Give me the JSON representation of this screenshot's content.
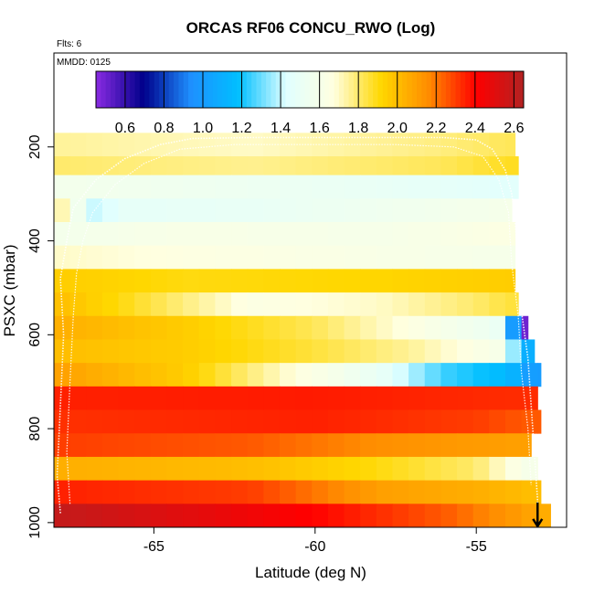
{
  "chart_data": {
    "type": "heatmap",
    "title": "ORCAS RF06 CONCU_RWO (Log)",
    "flights_label": "Flts: 6",
    "date_label": "MMDD: 0125",
    "xlabel": "Latitude (deg N)",
    "ylabel": "PSXC (mbar)",
    "xlim": [
      -68.1,
      -52.2
    ],
    "ylim": [
      1010,
      0
    ],
    "x_ticks": [
      -65,
      -60,
      -55
    ],
    "x_tick_labels": [
      "-65",
      "-60",
      "-55"
    ],
    "y_ticks": [
      200,
      400,
      600,
      800,
      1000
    ],
    "y_tick_labels": [
      "200",
      "400",
      "600",
      "800",
      "1000"
    ],
    "colorbar": {
      "min": 0.45,
      "max": 2.65,
      "ticks": [
        0.6,
        0.8,
        1.0,
        1.2,
        1.4,
        1.6,
        1.8,
        2.0,
        2.2,
        2.4,
        2.6
      ],
      "tick_labels": [
        "0.6",
        "0.8",
        "1.0",
        "1.2",
        "1.4",
        "1.6",
        "1.8",
        "2.0",
        "2.2",
        "2.4",
        "2.6"
      ],
      "colors": [
        "#8a2be2",
        "#00008b",
        "#1e90ff",
        "#00bfff",
        "#e0ffff",
        "#ffffe0",
        "#ffd700",
        "#ff8c00",
        "#ff0000",
        "#b22222"
      ]
    },
    "pressure_bands": [
      {
        "p_top": 170,
        "p_bot": 220,
        "lat_max": -53.8,
        "profile": [
          [
            -68.1,
            1.75
          ],
          [
            -62,
            1.7
          ],
          [
            -56,
            1.78
          ],
          [
            -54,
            1.82
          ]
        ]
      },
      {
        "p_top": 220,
        "p_bot": 260,
        "lat_max": -53.7,
        "profile": [
          [
            -68.1,
            1.8
          ],
          [
            -62,
            1.76
          ],
          [
            -56,
            1.82
          ],
          [
            -54,
            1.88
          ]
        ]
      },
      {
        "p_top": 260,
        "p_bot": 310,
        "lat_max": -53.7,
        "profile": [
          [
            -68.1,
            1.58
          ],
          [
            -64,
            1.55
          ],
          [
            -58,
            1.5
          ],
          [
            -54,
            1.45
          ]
        ]
      },
      {
        "p_top": 310,
        "p_bot": 360,
        "lat_max": -53.9,
        "profile": [
          [
            -68.1,
            1.8
          ],
          [
            -67,
            1.45
          ],
          [
            -66.5,
            1.3
          ],
          [
            -66.3,
            1.48
          ],
          [
            -62,
            1.5
          ],
          [
            -58,
            1.55
          ],
          [
            -54,
            1.6
          ]
        ]
      },
      {
        "p_top": 360,
        "p_bot": 410,
        "lat_max": -53.8,
        "profile": [
          [
            -68.1,
            1.58
          ],
          [
            -64,
            1.62
          ],
          [
            -58,
            1.6
          ],
          [
            -54,
            1.65
          ]
        ]
      },
      {
        "p_top": 410,
        "p_bot": 460,
        "lat_max": -53.8,
        "profile": [
          [
            -68.1,
            1.7
          ],
          [
            -64,
            1.66
          ],
          [
            -58,
            1.62
          ],
          [
            -54,
            1.6
          ]
        ]
      },
      {
        "p_top": 460,
        "p_bot": 510,
        "lat_max": -53.8,
        "profile": [
          [
            -68.1,
            1.95
          ],
          [
            -64,
            1.9
          ],
          [
            -58,
            1.92
          ],
          [
            -54,
            1.95
          ]
        ]
      },
      {
        "p_top": 510,
        "p_bot": 560,
        "lat_max": -53.7,
        "profile": [
          [
            -68.1,
            2.0
          ],
          [
            -66,
            1.9
          ],
          [
            -62,
            1.65
          ],
          [
            -58,
            1.7
          ],
          [
            -55,
            1.8
          ],
          [
            -54,
            1.85
          ]
        ]
      },
      {
        "p_top": 560,
        "p_bot": 610,
        "lat_max": -53.4,
        "profile": [
          [
            -68.1,
            2.05
          ],
          [
            -64,
            1.95
          ],
          [
            -60,
            1.82
          ],
          [
            -56,
            1.6
          ],
          [
            -54,
            1.5
          ],
          [
            -53.7,
            0.5
          ]
        ]
      },
      {
        "p_top": 610,
        "p_bot": 660,
        "lat_max": -53.2,
        "profile": [
          [
            -68.1,
            2.0
          ],
          [
            -64,
            1.95
          ],
          [
            -60,
            1.85
          ],
          [
            -57,
            1.75
          ],
          [
            -54.2,
            1.6
          ],
          [
            -53.5,
            1.1
          ]
        ]
      },
      {
        "p_top": 660,
        "p_bot": 710,
        "lat_max": -53.0,
        "profile": [
          [
            -68.1,
            2.1
          ],
          [
            -64,
            1.95
          ],
          [
            -61,
            1.7
          ],
          [
            -58,
            1.5
          ],
          [
            -56,
            1.25
          ],
          [
            -54,
            1.15
          ],
          [
            -53.3,
            1.0
          ]
        ]
      },
      {
        "p_top": 710,
        "p_bot": 760,
        "lat_max": -53.1,
        "profile": [
          [
            -68.1,
            2.35
          ],
          [
            -60,
            2.36
          ],
          [
            -54,
            2.33
          ]
        ]
      },
      {
        "p_top": 760,
        "p_bot": 810,
        "lat_max": -53.0,
        "profile": [
          [
            -68.1,
            2.32
          ],
          [
            -60,
            2.35
          ],
          [
            -55,
            2.3
          ],
          [
            -53.5,
            2.25
          ]
        ]
      },
      {
        "p_top": 810,
        "p_bot": 860,
        "lat_max": -53.3,
        "profile": [
          [
            -68.1,
            2.3
          ],
          [
            -62,
            2.25
          ],
          [
            -58,
            2.15
          ],
          [
            -54,
            2.1
          ]
        ]
      },
      {
        "p_top": 860,
        "p_bot": 910,
        "lat_max": -53.1,
        "profile": [
          [
            -68.1,
            2.05
          ],
          [
            -62,
            2.0
          ],
          [
            -58,
            1.9
          ],
          [
            -55,
            1.8
          ],
          [
            -53.5,
            1.6
          ]
        ]
      },
      {
        "p_top": 910,
        "p_bot": 960,
        "lat_max": -53.0,
        "profile": [
          [
            -68.1,
            2.35
          ],
          [
            -62,
            2.3
          ],
          [
            -58,
            2.1
          ],
          [
            -55,
            2.05
          ],
          [
            -53.3,
            2.0
          ]
        ]
      },
      {
        "p_top": 960,
        "p_bot": 1010,
        "lat_max": -52.7,
        "profile": [
          [
            -68.1,
            2.6
          ],
          [
            -64,
            2.5
          ],
          [
            -60,
            2.4
          ],
          [
            -56,
            2.25
          ],
          [
            -53.5,
            2.1
          ],
          [
            -52.8,
            2.05
          ]
        ]
      }
    ],
    "flight_track": [
      [
        -67.9,
        980
      ],
      [
        -68.0,
        900
      ],
      [
        -67.9,
        750
      ],
      [
        -67.8,
        600
      ],
      [
        -67.9,
        480
      ],
      [
        -67.7,
        400
      ],
      [
        -67.5,
        330
      ],
      [
        -66.8,
        270
      ],
      [
        -65.9,
        225
      ],
      [
        -64.8,
        195
      ],
      [
        -63.8,
        182
      ],
      [
        -62,
        180
      ],
      [
        -60,
        180
      ],
      [
        -58,
        180
      ],
      [
        -56,
        180
      ],
      [
        -55.0,
        185
      ],
      [
        -54.5,
        205
      ],
      [
        -54.1,
        250
      ],
      [
        -53.9,
        300
      ],
      [
        -53.8,
        350
      ],
      [
        -53.7,
        450
      ],
      [
        -53.6,
        550
      ],
      [
        -53.4,
        650
      ],
      [
        -53.3,
        750
      ],
      [
        -53.2,
        850
      ],
      [
        -53.1,
        950
      ],
      [
        -53.1,
        1000
      ]
    ],
    "flight_track_2": [
      [
        -67.6,
        960
      ],
      [
        -67.7,
        850
      ],
      [
        -67.6,
        700
      ],
      [
        -67.5,
        560
      ],
      [
        -67.4,
        470
      ],
      [
        -67.2,
        400
      ],
      [
        -66.9,
        340
      ],
      [
        -66.2,
        280
      ],
      [
        -65.3,
        235
      ],
      [
        -64.2,
        205
      ],
      [
        -62.5,
        195
      ],
      [
        -60,
        195
      ],
      [
        -57.5,
        195
      ],
      [
        -55.7,
        200
      ],
      [
        -54.8,
        220
      ],
      [
        -54.3,
        270
      ],
      [
        -54.0,
        340
      ],
      [
        -53.9,
        450
      ],
      [
        -53.7,
        560
      ],
      [
        -53.6,
        680
      ],
      [
        -53.4,
        800
      ],
      [
        -53.3,
        920
      ]
    ],
    "end_marker": {
      "lat": -53.1,
      "p": 1000
    }
  }
}
